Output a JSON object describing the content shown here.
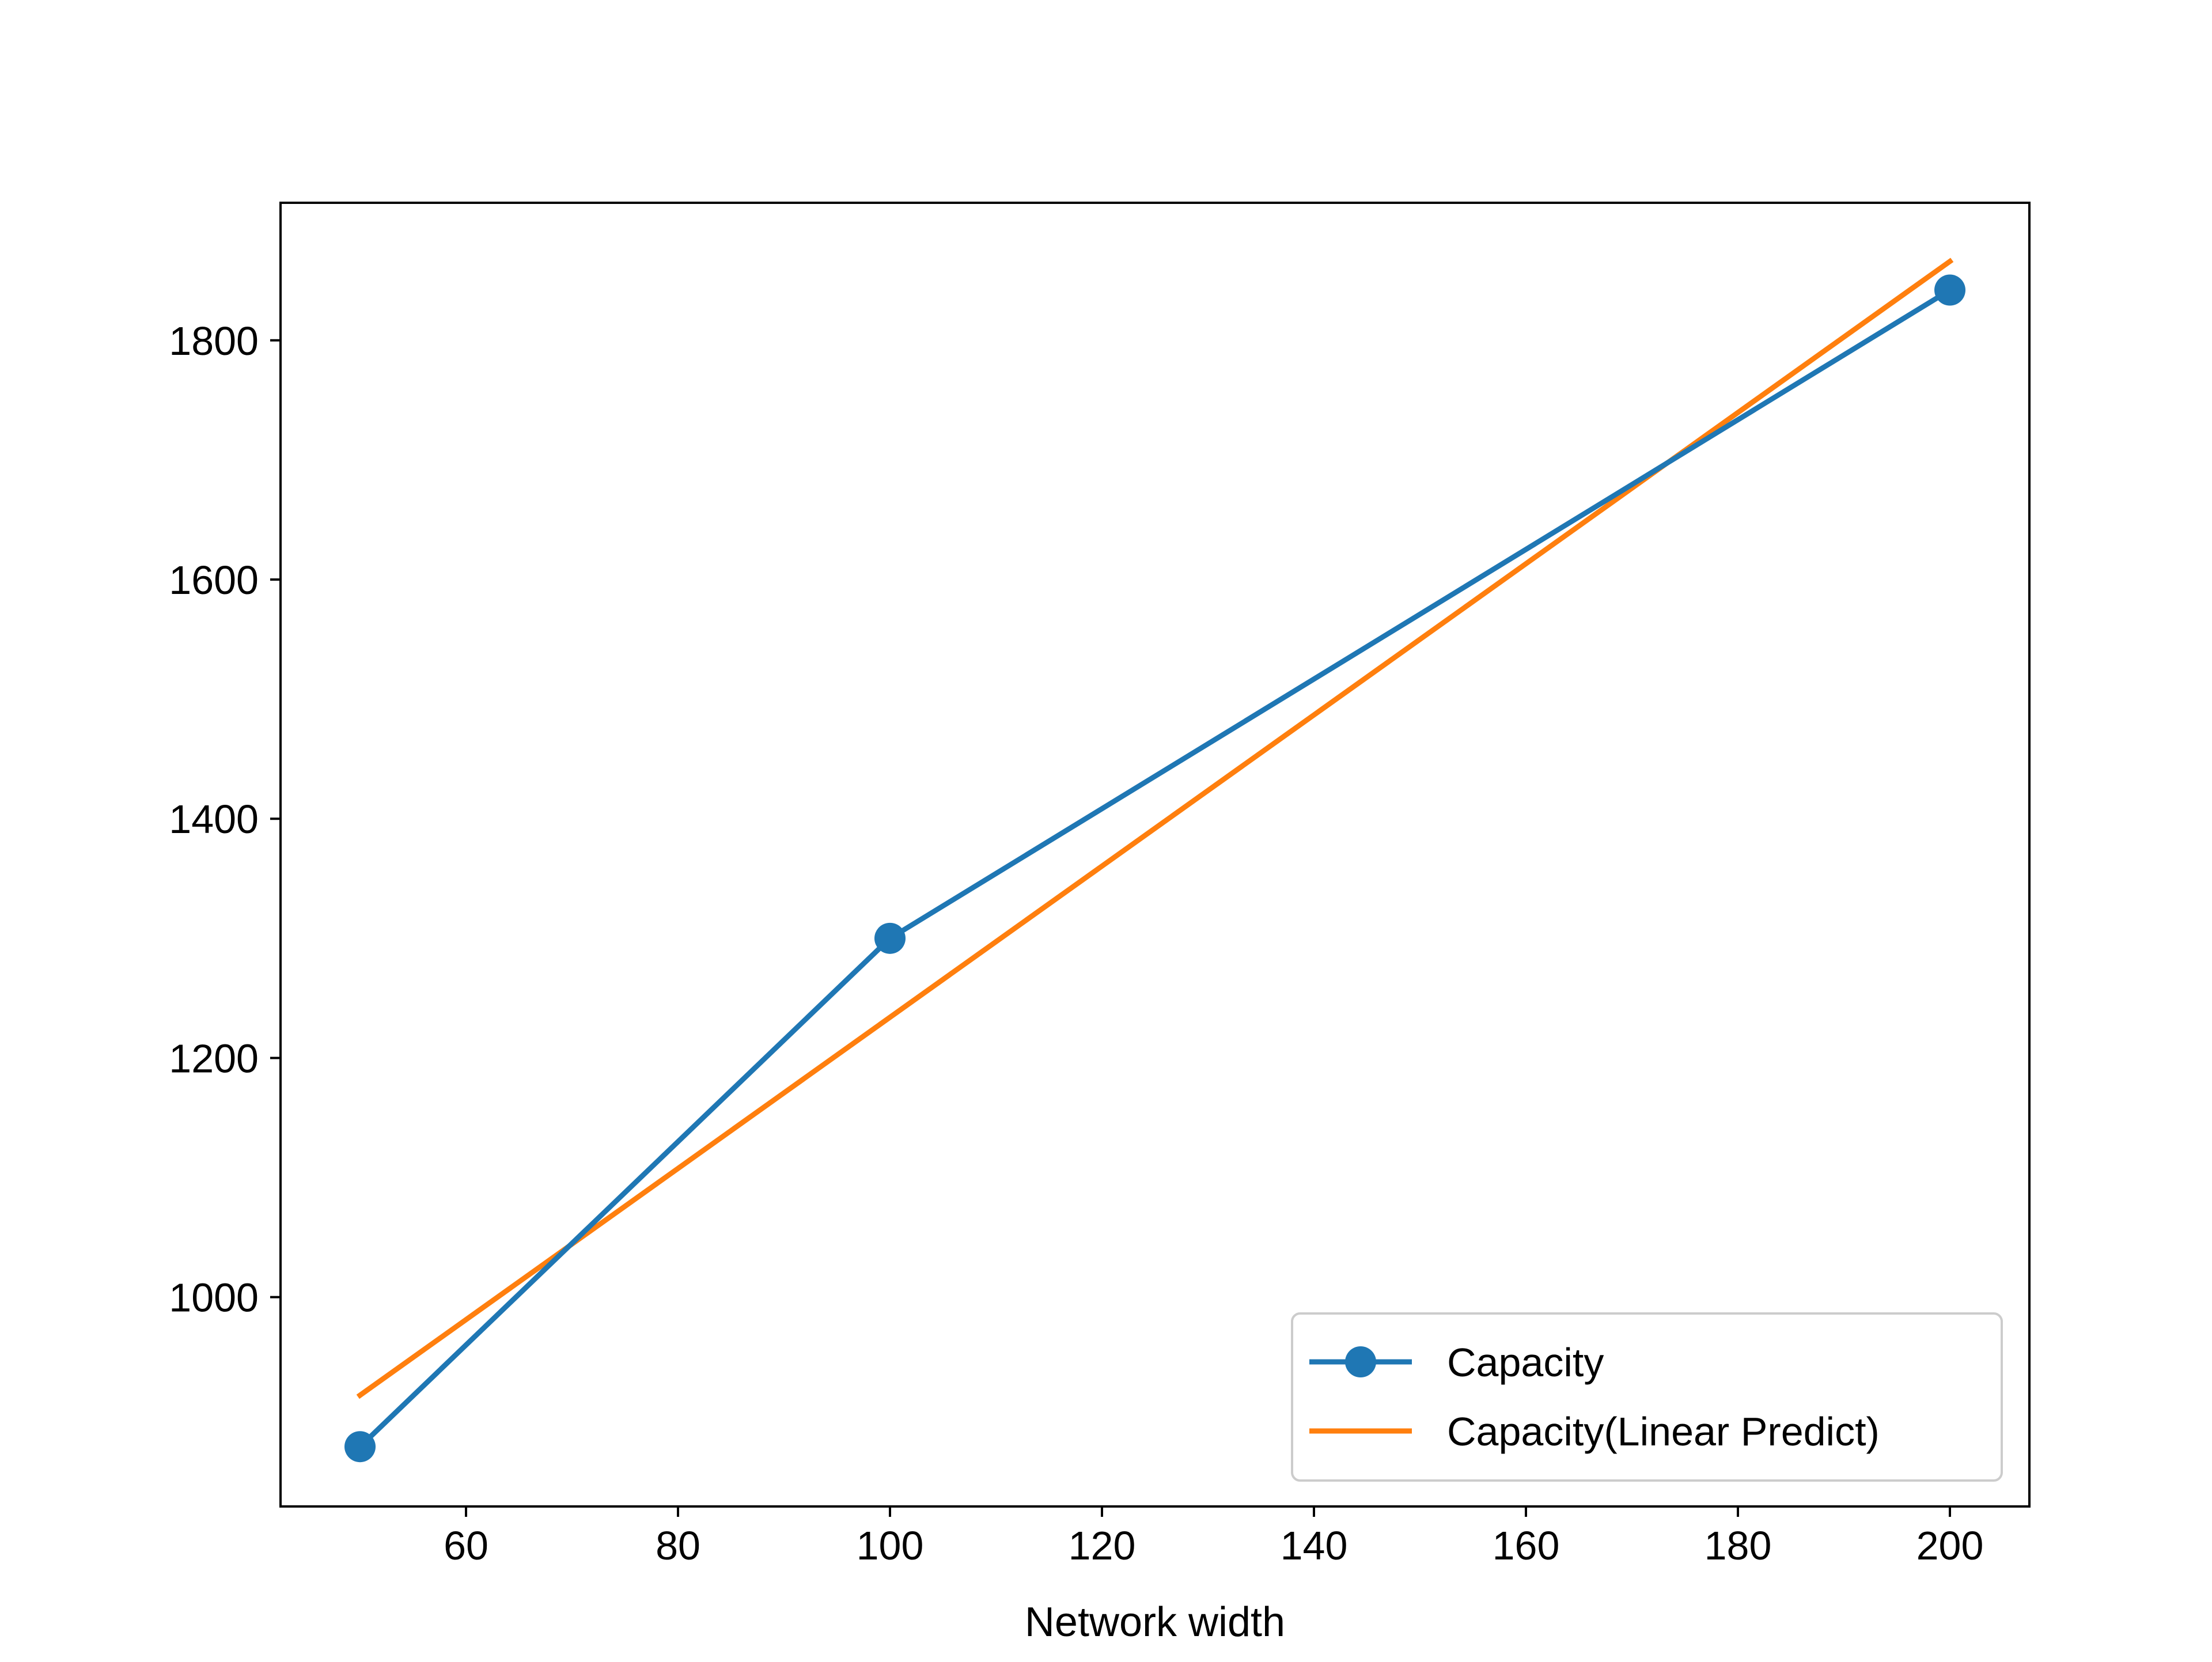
{
  "chart_data": {
    "type": "line",
    "title": "",
    "xlabel": "Network width",
    "ylabel": "",
    "xlim": [
      42.5,
      207.5
    ],
    "ylim": [
      825,
      1915
    ],
    "x_ticks": [
      60,
      80,
      100,
      120,
      140,
      160,
      180,
      200
    ],
    "y_ticks": [
      1000,
      1200,
      1400,
      1600,
      1800
    ],
    "x_tick_labels": [
      "60",
      "80",
      "100",
      "120",
      "140",
      "160",
      "180",
      "200"
    ],
    "y_tick_labels": [
      "1000",
      "1200",
      "1400",
      "1600",
      "1800"
    ],
    "grid": false,
    "legend_position": "lower-right",
    "series": [
      {
        "name": "Capacity",
        "x": [
          50,
          100,
          200
        ],
        "y": [
          875,
          1300,
          1842
        ],
        "color": "#1f77b4",
        "marker": "circle"
      },
      {
        "name": "Capacity(Linear Predict)",
        "x": [
          50,
          200
        ],
        "y": [
          918,
          1866
        ],
        "color": "#ff7f0e",
        "marker": "none"
      }
    ]
  }
}
